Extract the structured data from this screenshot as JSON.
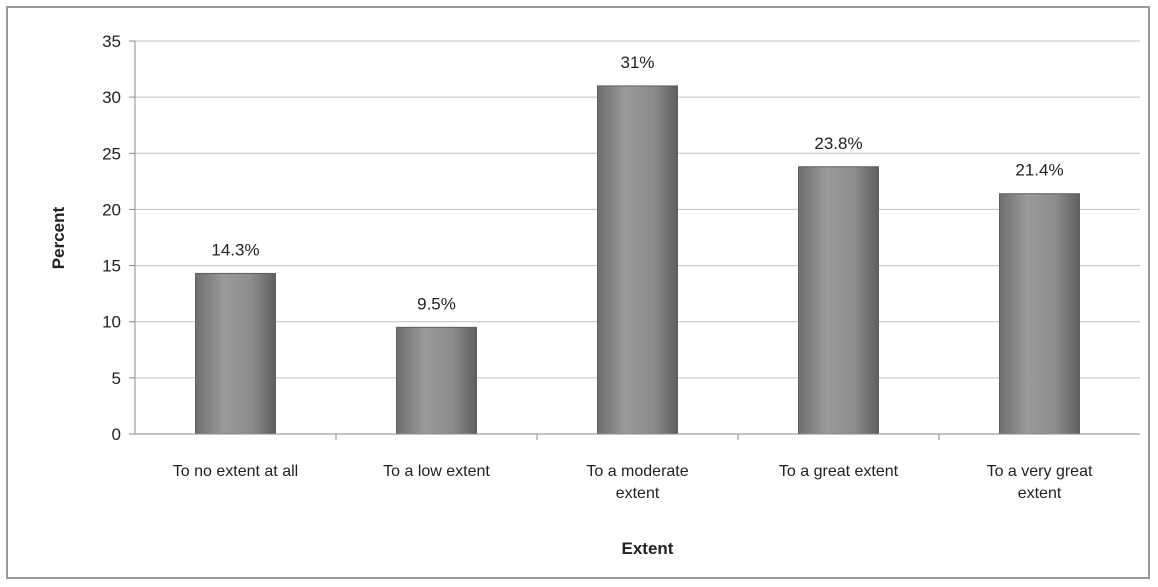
{
  "chart_data": {
    "type": "bar",
    "categories": [
      [
        "To no extent at all"
      ],
      [
        "To a low extent"
      ],
      [
        "To a moderate",
        "extent"
      ],
      [
        "To a great extent"
      ],
      [
        "To a very great",
        "extent"
      ]
    ],
    "values": [
      14.3,
      9.5,
      31,
      23.8,
      21.4
    ],
    "data_labels": [
      "14.3%",
      "9.5%",
      "31%",
      "23.8%",
      "21.4%"
    ],
    "yticks": [
      "0",
      "5",
      "10",
      "15",
      "20",
      "25",
      "30",
      "35"
    ],
    "ylim": [
      0,
      35
    ],
    "xlabel": "Extent",
    "ylabel": "Percent",
    "grid": true,
    "legend": "none",
    "colors": {
      "bar": "#8c8c8c",
      "bar_edge": "#5f5f5f",
      "grid": "#bfbfbf",
      "axis": "#8a8a8a"
    }
  }
}
